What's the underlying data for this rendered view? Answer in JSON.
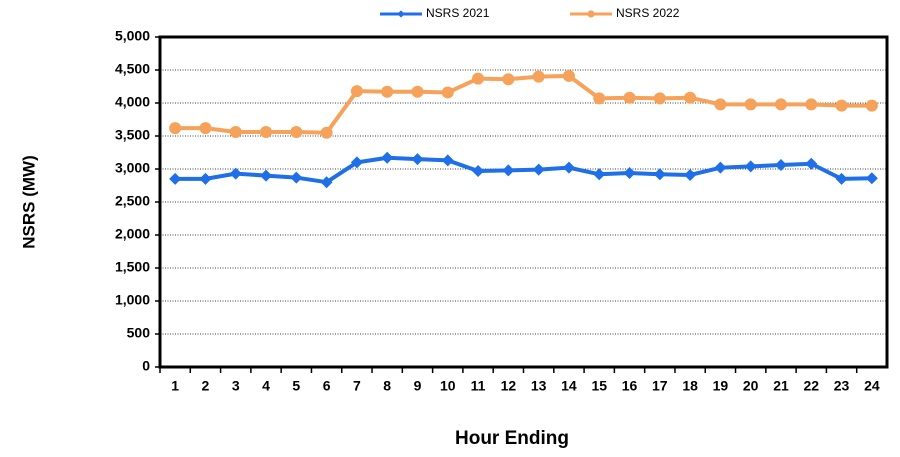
{
  "chart_data": {
    "type": "line",
    "categories": [
      "1",
      "2",
      "3",
      "4",
      "5",
      "6",
      "7",
      "8",
      "9",
      "10",
      "11",
      "12",
      "13",
      "14",
      "15",
      "16",
      "17",
      "18",
      "19",
      "20",
      "21",
      "22",
      "23",
      "24"
    ],
    "series": [
      {
        "name": "NSRS 2021",
        "color": "#1f6fe8",
        "marker": "diamond",
        "values": [
          2850,
          2850,
          2930,
          2900,
          2870,
          2800,
          3100,
          3170,
          3150,
          3130,
          2970,
          2980,
          2990,
          3020,
          2920,
          2940,
          2920,
          2910,
          3020,
          3040,
          3060,
          3080,
          2850,
          2860
        ]
      },
      {
        "name": "NSRS 2022",
        "color": "#f7a25a",
        "marker": "circle",
        "values": [
          3620,
          3620,
          3560,
          3560,
          3560,
          3550,
          4180,
          4170,
          4170,
          4160,
          4370,
          4360,
          4400,
          4410,
          4070,
          4080,
          4070,
          4080,
          3980,
          3980,
          3980,
          3980,
          3960,
          3960
        ]
      }
    ],
    "ylabel": "NSRS (MW)",
    "xlabel": "Hour Ending",
    "ylim": [
      0,
      5000
    ],
    "yticks": [
      0,
      500,
      {
        "value": 1000,
        "label": "1,000"
      },
      {
        "value": 1500,
        "label": "1,500"
      },
      {
        "value": 2000,
        "label": "2,000"
      },
      {
        "value": 2500,
        "label": "2,500"
      },
      {
        "value": 3000,
        "label": "3,000"
      },
      {
        "value": 3500,
        "label": "3,500"
      },
      {
        "value": 4000,
        "label": "4,000"
      },
      {
        "value": 4500,
        "label": "4,500"
      },
      {
        "value": 5000,
        "label": "5,000"
      }
    ],
    "grid": true,
    "legend": "top"
  }
}
